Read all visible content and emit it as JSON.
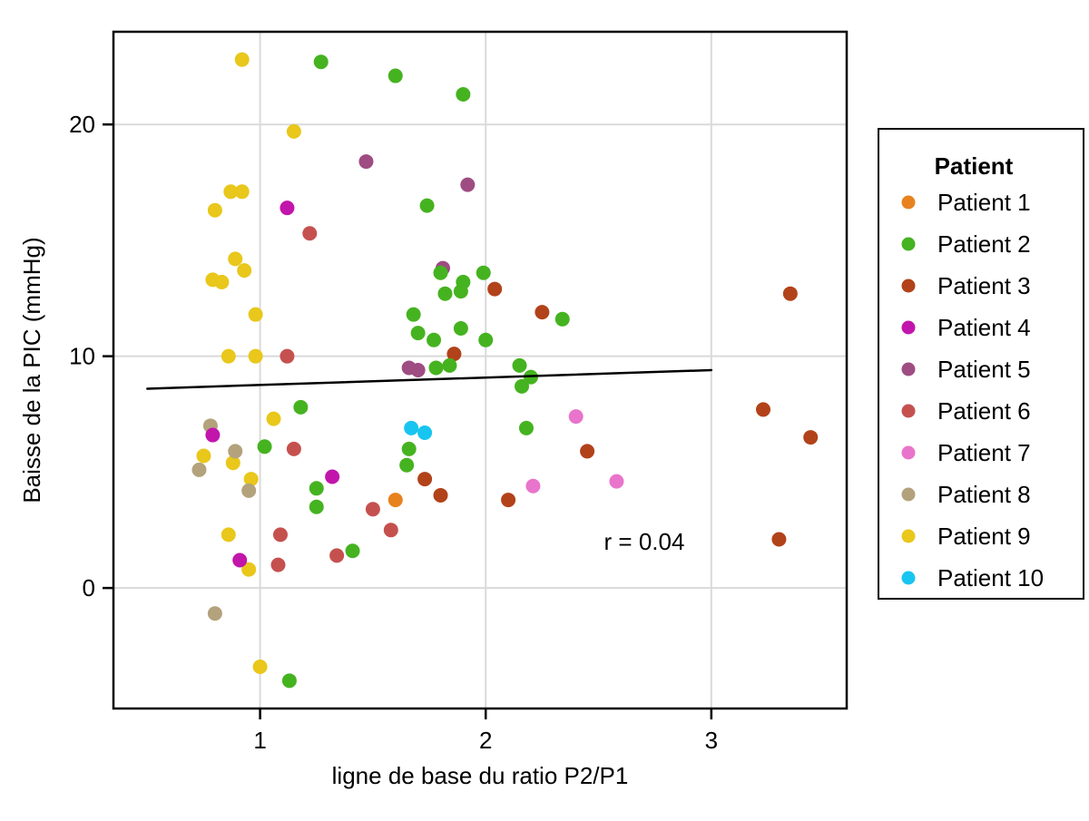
{
  "figure": {
    "background": "#ffffff",
    "panel_border_color": "#000000",
    "grid_color": "#dadada",
    "tick_color": "#000000",
    "text_color": "#000000"
  },
  "chart_data": {
    "type": "scatter",
    "title": "",
    "xlabel": "ligne de base du ratio P2/P1",
    "ylabel": "Baisse de la PIC (mmHg)",
    "xlim": [
      0.35,
      3.6
    ],
    "ylim": [
      -5.2,
      24.0
    ],
    "xticks": [
      1,
      2,
      3
    ],
    "yticks": [
      0,
      10,
      20
    ],
    "grid": true,
    "legend_position": "right",
    "legend_title": "Patient",
    "annotation": {
      "text": "r = 0.04",
      "x": 2.7,
      "y": 1.95
    },
    "trend_line": {
      "x": [
        0.5,
        3.0
      ],
      "y": [
        8.6,
        9.4
      ],
      "color": "#000000"
    },
    "series": [
      {
        "name": "Patient 1",
        "color": "#e8821e",
        "points": [
          [
            1.6,
            3.8
          ]
        ]
      },
      {
        "name": "Patient 2",
        "color": "#45b320",
        "points": [
          [
            1.27,
            22.7
          ],
          [
            1.6,
            22.1
          ],
          [
            1.9,
            21.3
          ],
          [
            1.74,
            16.5
          ],
          [
            1.8,
            13.6
          ],
          [
            1.99,
            13.6
          ],
          [
            1.9,
            13.2
          ],
          [
            1.89,
            12.8
          ],
          [
            1.82,
            12.7
          ],
          [
            1.68,
            11.8
          ],
          [
            2.34,
            11.6
          ],
          [
            1.89,
            11.2
          ],
          [
            1.7,
            11.0
          ],
          [
            1.77,
            10.7
          ],
          [
            2.0,
            10.7
          ],
          [
            1.84,
            9.6
          ],
          [
            2.15,
            9.6
          ],
          [
            1.78,
            9.5
          ],
          [
            2.2,
            9.1
          ],
          [
            2.16,
            8.7
          ],
          [
            1.18,
            7.8
          ],
          [
            2.18,
            6.9
          ],
          [
            1.02,
            6.1
          ],
          [
            1.66,
            6.0
          ],
          [
            1.65,
            5.3
          ],
          [
            1.25,
            4.3
          ],
          [
            1.25,
            3.5
          ],
          [
            1.41,
            1.6
          ],
          [
            1.13,
            -4.0
          ]
        ]
      },
      {
        "name": "Patient 3",
        "color": "#b2421a",
        "points": [
          [
            3.35,
            12.7
          ],
          [
            2.04,
            12.9
          ],
          [
            2.25,
            11.9
          ],
          [
            1.86,
            10.1
          ],
          [
            3.23,
            7.7
          ],
          [
            3.44,
            6.5
          ],
          [
            2.45,
            5.9
          ],
          [
            1.73,
            4.7
          ],
          [
            1.8,
            4.0
          ],
          [
            2.1,
            3.8
          ],
          [
            3.3,
            2.1
          ]
        ]
      },
      {
        "name": "Patient 4",
        "color": "#c215ac",
        "points": [
          [
            1.12,
            16.4
          ],
          [
            0.79,
            6.6
          ],
          [
            1.32,
            4.8
          ],
          [
            0.91,
            1.2
          ]
        ]
      },
      {
        "name": "Patient 5",
        "color": "#9e4c82",
        "points": [
          [
            1.47,
            18.4
          ],
          [
            1.92,
            17.4
          ],
          [
            1.81,
            13.8
          ],
          [
            1.66,
            9.5
          ],
          [
            1.7,
            9.4
          ]
        ]
      },
      {
        "name": "Patient 6",
        "color": "#c5514f",
        "points": [
          [
            1.22,
            15.3
          ],
          [
            1.12,
            10.0
          ],
          [
            1.15,
            6.0
          ],
          [
            1.5,
            3.4
          ],
          [
            1.58,
            2.5
          ],
          [
            1.09,
            2.3
          ],
          [
            1.34,
            1.4
          ],
          [
            1.08,
            1.0
          ]
        ]
      },
      {
        "name": "Patient 7",
        "color": "#e974cb",
        "points": [
          [
            2.4,
            7.4
          ],
          [
            2.58,
            4.6
          ],
          [
            2.21,
            4.4
          ]
        ]
      },
      {
        "name": "Patient 8",
        "color": "#b3a27c",
        "points": [
          [
            0.78,
            7.0
          ],
          [
            0.89,
            5.9
          ],
          [
            0.73,
            5.1
          ],
          [
            0.95,
            4.2
          ],
          [
            0.8,
            -1.1
          ]
        ]
      },
      {
        "name": "Patient 9",
        "color": "#e9c71b",
        "points": [
          [
            0.92,
            22.8
          ],
          [
            1.15,
            19.7
          ],
          [
            0.87,
            17.1
          ],
          [
            0.92,
            17.1
          ],
          [
            0.8,
            16.3
          ],
          [
            0.89,
            14.2
          ],
          [
            0.93,
            13.7
          ],
          [
            0.79,
            13.3
          ],
          [
            0.83,
            13.2
          ],
          [
            0.98,
            11.8
          ],
          [
            0.86,
            10.0
          ],
          [
            0.98,
            10.0
          ],
          [
            1.06,
            7.3
          ],
          [
            0.75,
            5.7
          ],
          [
            0.88,
            5.4
          ],
          [
            0.96,
            4.7
          ],
          [
            0.86,
            2.3
          ],
          [
            0.95,
            0.8
          ],
          [
            1.0,
            -3.4
          ]
        ]
      },
      {
        "name": "Patient 10",
        "color": "#17c5f0",
        "points": [
          [
            1.67,
            6.9
          ],
          [
            1.73,
            6.7
          ]
        ]
      }
    ]
  }
}
